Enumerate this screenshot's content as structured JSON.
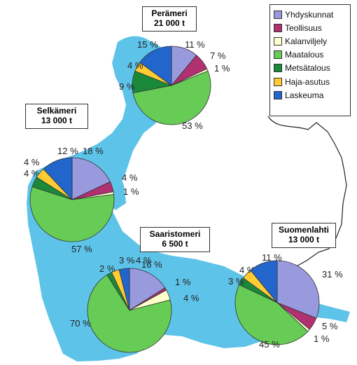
{
  "legend": {
    "items": [
      {
        "label": "Yhdyskunnat",
        "color": "#9999dd"
      },
      {
        "label": "Teollisuus",
        "color": "#b03070"
      },
      {
        "label": "Kalanviljely",
        "color": "#ffffcc"
      },
      {
        "label": "Maatalous",
        "color": "#66cc55"
      },
      {
        "label": "Metsätalous",
        "color": "#1a8a3a"
      },
      {
        "label": "Haja-asutus",
        "color": "#ffcc33"
      },
      {
        "label": "Laskeuma",
        "color": "#2266cc"
      }
    ]
  },
  "regions": [
    {
      "name": "Perämeri",
      "amount": "21 000 t",
      "values": [
        11,
        7,
        1,
        53,
        9,
        4,
        15
      ],
      "labels": [
        "11 %",
        "7 %",
        "1 %",
        "53 %",
        "9 %",
        "4 %",
        "15 %"
      ]
    },
    {
      "name": "Selkämeri",
      "amount": "13 000 t",
      "values": [
        18,
        4,
        1,
        57,
        4,
        4,
        12
      ],
      "labels": [
        "18 %",
        "4 %",
        "1 %",
        "57 %",
        "4 %",
        "4 %",
        "12 %"
      ]
    },
    {
      "name": "Saaristomeri",
      "amount": "6 500 t",
      "values": [
        16,
        1,
        4,
        70,
        2,
        3,
        4
      ],
      "labels": [
        "16 %",
        "1 %",
        "4 %",
        "70 %",
        "2 %",
        "3 %",
        "4 %"
      ]
    },
    {
      "name": "Suomenlahti",
      "amount": "13 000 t",
      "values": [
        31,
        5,
        1,
        45,
        3,
        4,
        11
      ],
      "labels": [
        "31 %",
        "5 %",
        "1 %",
        "45 %",
        "3 %",
        "4 %",
        "11 %"
      ]
    }
  ],
  "colors": {
    "water": "#5ec3e8",
    "land": "#ffffff",
    "border": "#222222"
  }
}
